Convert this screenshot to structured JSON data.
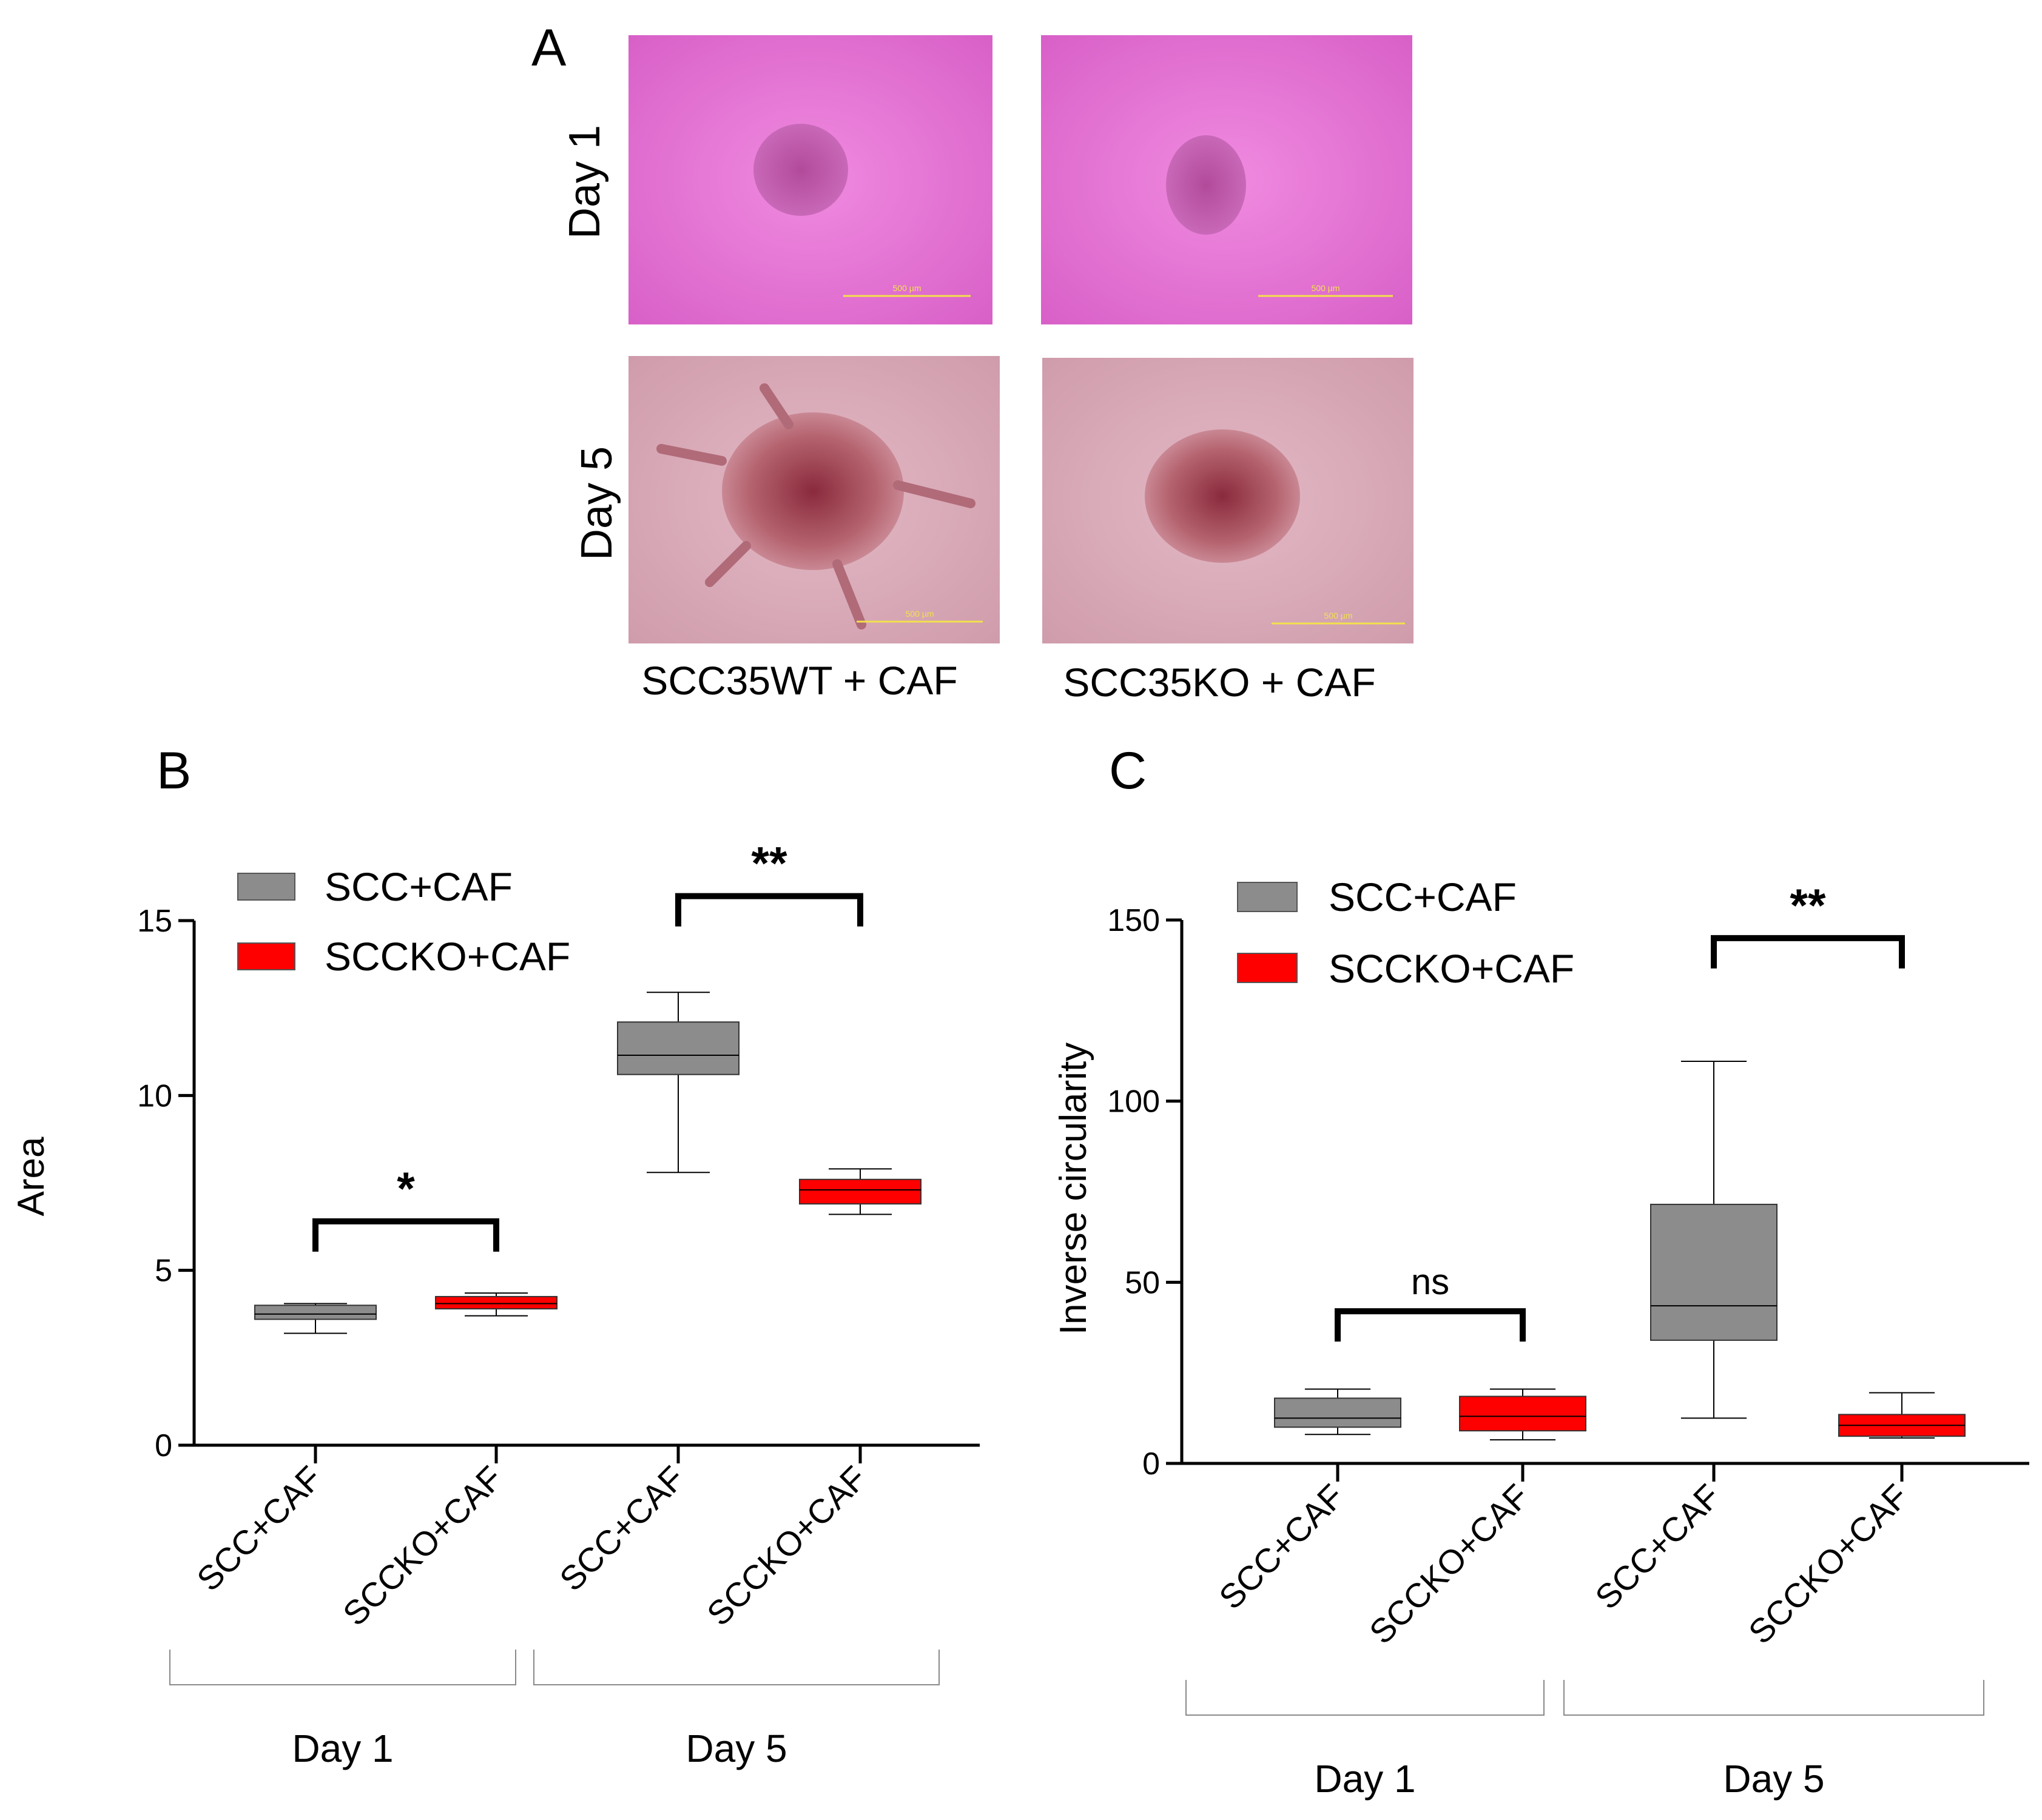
{
  "panel_a": {
    "letter": "A",
    "row_labels": [
      "Day 1",
      "Day 5"
    ],
    "column_labels": [
      "SCC35WT + CAF",
      "SCC35KO + CAF"
    ],
    "scale_bar_text": "500 µm",
    "colors": {
      "day1_bg": "#e06fd2",
      "day5_bg": "#d7a5b3",
      "scale_bar": "#f2e14c"
    }
  },
  "chart_data": [
    {
      "panel": "B",
      "type": "box",
      "title": "",
      "xlabel": "",
      "ylabel": "Area",
      "ylim": [
        0,
        15
      ],
      "yticks": [
        0,
        5,
        10,
        15
      ],
      "legend": {
        "position": "top-left",
        "entries": [
          {
            "name": "SCC+CAF",
            "color": "#8c8c8c"
          },
          {
            "name": "SCCKO+CAF",
            "color": "#ff0000"
          }
        ]
      },
      "categories": [
        "SCC+CAF",
        "SCCKO+CAF",
        "SCC+CAF",
        "SCCKO+CAF"
      ],
      "groups": [
        {
          "label": "Day 1",
          "members": [
            0,
            1
          ]
        },
        {
          "label": "Day 5",
          "members": [
            2,
            3
          ]
        }
      ],
      "boxes": [
        {
          "series": "SCC+CAF",
          "color": "#8c8c8c",
          "min": 3.2,
          "q1": 3.6,
          "median": 3.75,
          "q3": 4.0,
          "max": 4.05
        },
        {
          "series": "SCCKO+CAF",
          "color": "#ff0000",
          "min": 3.7,
          "q1": 3.9,
          "median": 4.05,
          "q3": 4.25,
          "max": 4.35
        },
        {
          "series": "SCC+CAF",
          "color": "#8c8c8c",
          "min": 7.8,
          "q1": 10.6,
          "median": 11.15,
          "q3": 12.1,
          "max": 12.95
        },
        {
          "series": "SCCKO+CAF",
          "color": "#ff0000",
          "min": 6.6,
          "q1": 6.9,
          "median": 7.3,
          "q3": 7.6,
          "max": 7.9
        }
      ],
      "significance": [
        {
          "from": 0,
          "to": 1,
          "label": "*",
          "level": 6.4
        },
        {
          "from": 2,
          "to": 3,
          "label": "**",
          "level": 15.7
        }
      ]
    },
    {
      "panel": "C",
      "type": "box",
      "title": "",
      "xlabel": "",
      "ylabel": "Inverse circularity",
      "ylim": [
        0,
        150
      ],
      "yticks": [
        0,
        50,
        100,
        150
      ],
      "legend": {
        "position": "top-left",
        "entries": [
          {
            "name": "SCC+CAF",
            "color": "#8c8c8c"
          },
          {
            "name": "SCCKO+CAF",
            "color": "#ff0000"
          }
        ]
      },
      "categories": [
        "SCC+CAF",
        "SCCKO+CAF",
        "SCC+CAF",
        "SCCKO+CAF"
      ],
      "groups": [
        {
          "label": "Day 1",
          "members": [
            0,
            1
          ]
        },
        {
          "label": "Day 5",
          "members": [
            2,
            3
          ]
        }
      ],
      "boxes": [
        {
          "series": "SCC+CAF",
          "color": "#8c8c8c",
          "min": 8,
          "q1": 10,
          "median": 12.5,
          "q3": 18,
          "max": 20.5
        },
        {
          "series": "SCCKO+CAF",
          "color": "#ff0000",
          "min": 6.5,
          "q1": 9,
          "median": 13,
          "q3": 18.5,
          "max": 20.5
        },
        {
          "series": "SCC+CAF",
          "color": "#8c8c8c",
          "min": 12.5,
          "q1": 34,
          "median": 43.5,
          "q3": 71.5,
          "max": 111
        },
        {
          "series": "SCCKO+CAF",
          "color": "#ff0000",
          "min": 7,
          "q1": 7.5,
          "median": 10.5,
          "q3": 13.5,
          "max": 19.5
        }
      ],
      "significance": [
        {
          "from": 0,
          "to": 1,
          "label": "ns",
          "level": 42
        },
        {
          "from": 2,
          "to": 3,
          "label": "**",
          "level": 145
        }
      ]
    }
  ]
}
